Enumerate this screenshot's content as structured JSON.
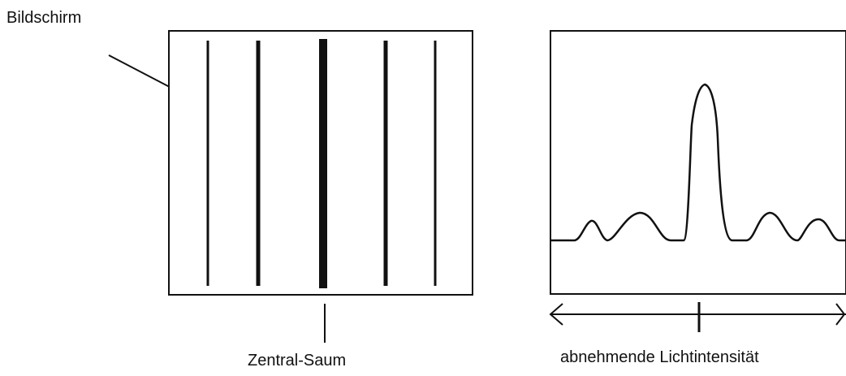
{
  "labels": {
    "screen": "Bildschirm",
    "central_fringe": "Zentral-Saum",
    "intensity": "abnehmende Lichtintensität"
  },
  "colors": {
    "line": "#111111",
    "background": "#ffffff"
  },
  "icons": {
    "left_arrow": "arrow-left-icon",
    "right_arrow": "arrow-right-icon"
  }
}
